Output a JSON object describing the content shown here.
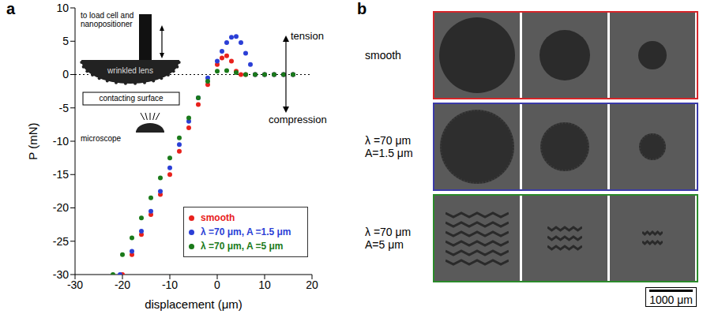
{
  "panel_labels": [
    "a",
    "b"
  ],
  "chart_data": {
    "type": "scatter",
    "x_label": "displacement (μm)",
    "y_label": "P (mN)",
    "xlim": [
      -30,
      20
    ],
    "xticks": [
      -30,
      -20,
      -10,
      0,
      10,
      20
    ],
    "ylim": [
      -30,
      10
    ],
    "yticks": [
      -30,
      -25,
      -20,
      -15,
      -10,
      -5,
      0,
      5,
      10
    ],
    "reference_y": 0,
    "legend": "lower right",
    "marker": "circle",
    "grid": false,
    "annotations": [
      "tension",
      "compression"
    ],
    "inset": [
      "to load cell and nanopositioner",
      "wrinkled lens",
      "contacting surface",
      "microscope"
    ],
    "series": [
      {
        "name": "smooth",
        "color": "#e8211c",
        "x": [
          -20,
          -18,
          -16,
          -14,
          -12,
          -10,
          -8,
          -6,
          -4,
          -2,
          0,
          1,
          2,
          3,
          4,
          5,
          6,
          8,
          10,
          12,
          14,
          16
        ],
        "values": [
          -30,
          -27,
          -24,
          -21,
          -18,
          -15,
          -11.5,
          -8,
          -4.5,
          -1.5,
          1.5,
          2.5,
          2.8,
          2,
          0.5,
          0,
          0,
          0,
          0,
          0,
          0,
          0
        ]
      },
      {
        "name": "λ =70 μm, A =1.5 μm",
        "color": "#2b3fd6",
        "x": [
          -20.5,
          -18,
          -16,
          -14,
          -12,
          -10,
          -8,
          -6,
          -4,
          -2,
          0,
          1,
          2,
          3,
          4,
          5,
          6,
          7,
          8,
          10,
          12,
          14,
          16
        ],
        "values": [
          -30,
          -26.5,
          -23.5,
          -20.5,
          -17.5,
          -14,
          -10.5,
          -7,
          -3.5,
          -0.5,
          2,
          3.5,
          4.8,
          5.6,
          5.7,
          4.8,
          3.2,
          1.5,
          0,
          0,
          0,
          0,
          0
        ]
      },
      {
        "name": "λ =70 μm, A =5 μm",
        "color": "#1a7a1a",
        "x": [
          -22,
          -20,
          -18,
          -16,
          -14,
          -12,
          -10,
          -8,
          -6,
          -4,
          -2,
          0,
          2,
          4,
          6,
          8,
          10,
          12,
          14,
          16
        ],
        "values": [
          -30,
          -27,
          -24.5,
          -21.5,
          -18.5,
          -15.5,
          -12.5,
          -9.5,
          -6.5,
          -3.5,
          -1,
          0.5,
          0.6,
          0.3,
          0,
          0,
          0,
          0,
          0,
          0
        ]
      }
    ]
  },
  "panel_b": {
    "rows": [
      {
        "label": [
          "smooth"
        ],
        "color": "#d6262a"
      },
      {
        "label": [
          "λ =70 μm",
          "A=1.5 μm"
        ],
        "color": "#3a3aa8"
      },
      {
        "label": [
          "λ =70 μm",
          "A=5 μm"
        ],
        "color": "#2a8a2a"
      }
    ],
    "scale_bar": "1000 μm"
  }
}
